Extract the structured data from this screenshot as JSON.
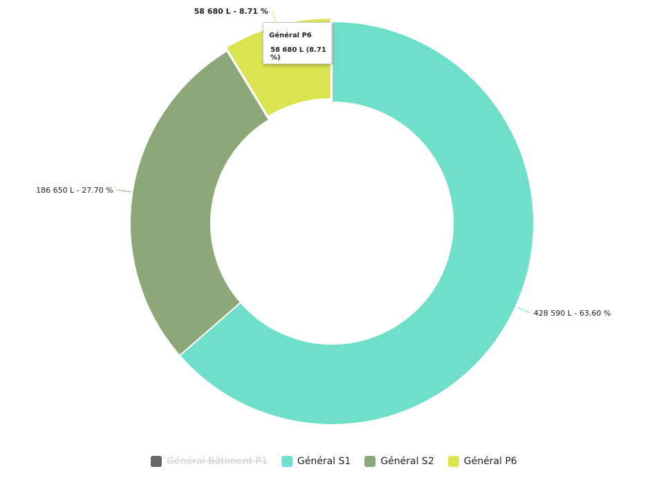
{
  "chart_data": {
    "type": "pie",
    "variant": "donut",
    "categories": [
      "Général Bâtiment P1",
      "Général S1",
      "Général S2",
      "Général P6"
    ],
    "values": [
      0,
      428590,
      186650,
      58680
    ],
    "percentages": [
      0,
      63.6,
      27.7,
      8.71
    ],
    "unit": "L",
    "colors": [
      "#666666",
      "#6fdfca",
      "#8da878",
      "#dae350"
    ],
    "visible": [
      false,
      true,
      true,
      true
    ],
    "data_labels": [
      "",
      "428 590 L - 63.60 %",
      "186 650 L - 27.70 %",
      "58 680 L - 8.71 %"
    ],
    "legend_position": "bottom-center",
    "start": "top, clockwise"
  },
  "tooltip": {
    "title": "Général P6",
    "value": "58 680 L (8.71 %)"
  },
  "legend": [
    {
      "label": "Général Bâtiment P1",
      "color": "#666666",
      "hidden": true
    },
    {
      "label": "Général S1",
      "color": "#6fdfca",
      "hidden": false
    },
    {
      "label": "Général S2",
      "color": "#8da878",
      "hidden": false
    },
    {
      "label": "Général P6",
      "color": "#dae350",
      "hidden": false
    }
  ]
}
